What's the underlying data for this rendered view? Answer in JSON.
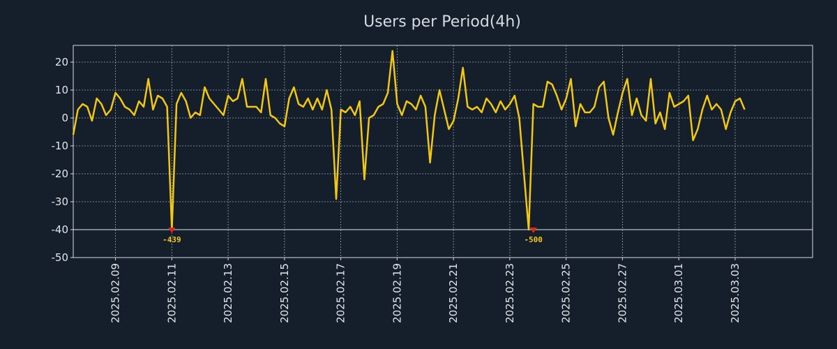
{
  "chart_data": {
    "type": "line",
    "title": "Users per Period(4h)",
    "xlabel": "",
    "ylabel": "",
    "ylim": [
      -50,
      26
    ],
    "yticks": [
      20,
      10,
      0,
      -10,
      -20,
      -30,
      -40,
      -50
    ],
    "x_range_days": [
      0,
      26.25
    ],
    "x_ticks": [
      {
        "label": "2025.02.09",
        "day": 1.5
      },
      {
        "label": "2025.02.11",
        "day": 3.5
      },
      {
        "label": "2025.02.13",
        "day": 5.5
      },
      {
        "label": "2025.02.15",
        "day": 7.5
      },
      {
        "label": "2025.02.17",
        "day": 9.5
      },
      {
        "label": "2025.02.19",
        "day": 11.5
      },
      {
        "label": "2025.02.21",
        "day": 13.5
      },
      {
        "label": "2025.02.23",
        "day": 15.5
      },
      {
        "label": "2025.02.25",
        "day": 17.5
      },
      {
        "label": "2025.02.27",
        "day": 19.5
      },
      {
        "label": "2025.03.01",
        "day": 21.5
      },
      {
        "label": "2025.03.03",
        "day": 23.5
      }
    ],
    "grid": true,
    "reference_line": -40,
    "series": [
      {
        "name": "Users",
        "color": "#f2c811",
        "x_step_days": 0.1667,
        "values": [
          -6,
          3,
          5,
          4,
          -1,
          7,
          5,
          1,
          3,
          9,
          7,
          4,
          3,
          1,
          6,
          4,
          14,
          3,
          8,
          7,
          4,
          -40,
          5,
          9,
          6,
          0,
          2,
          1,
          11,
          7,
          5,
          3,
          1,
          8,
          6,
          7,
          14,
          4,
          4,
          4,
          2,
          14,
          1,
          0,
          -2,
          -3,
          7,
          11,
          5,
          4,
          7,
          3,
          7,
          3,
          10,
          3,
          -29,
          3,
          2,
          4,
          1,
          6,
          -22,
          0,
          1,
          4,
          5,
          9,
          24,
          5,
          1,
          6,
          5,
          3,
          8,
          4,
          -16,
          1,
          10,
          3,
          -4,
          -1,
          7,
          18,
          4,
          3,
          4,
          2,
          7,
          5,
          2,
          6,
          3,
          5,
          8,
          0,
          -20,
          -40,
          5,
          4,
          4,
          13,
          12,
          8,
          3,
          7,
          14,
          -3,
          5,
          2,
          2,
          4,
          11,
          13,
          0,
          -6,
          2,
          9,
          14,
          1,
          7,
          1,
          -1,
          14,
          -2,
          2,
          -4,
          9,
          4,
          5,
          6,
          8,
          -8,
          -4,
          3,
          8,
          3,
          5,
          3,
          -4,
          2,
          6,
          7,
          3
        ]
      }
    ],
    "annotations": [
      {
        "label": "-439",
        "index": 21,
        "y": -40,
        "color": "#f2c811",
        "marker_color": "#e8221c"
      },
      {
        "label": "-500",
        "index": 98,
        "y": -40,
        "color": "#f2c811",
        "marker_color": "#e8221c"
      }
    ]
  },
  "colors": {
    "background": "#151f2c",
    "axes": "#d6dbe2",
    "grid": "#9aa3ad",
    "line": "#f2c811"
  }
}
